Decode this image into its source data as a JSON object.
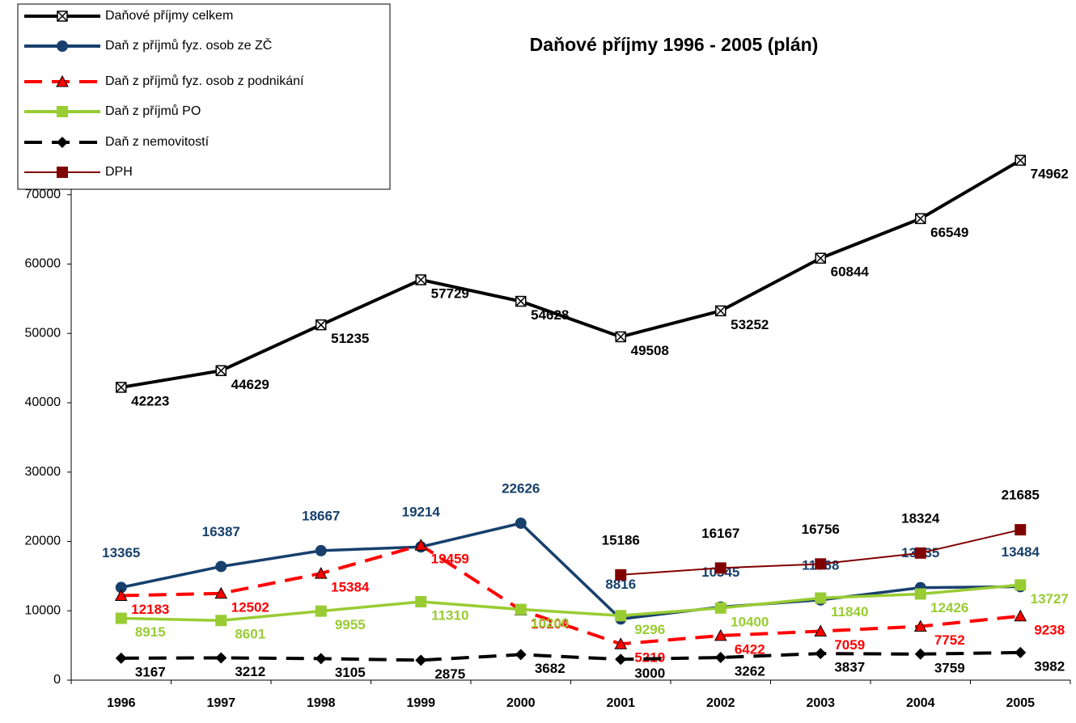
{
  "chart_data": {
    "type": "line",
    "title": "Daňové příjmy 1996 - 2005 (plán)",
    "categories": [
      "1996",
      "1997",
      "1998",
      "1999",
      "2000",
      "2001",
      "2002",
      "2003",
      "2004",
      "2005"
    ],
    "ylim": [
      0,
      80000
    ],
    "yticks": [
      0,
      10000,
      20000,
      30000,
      40000,
      50000,
      60000,
      70000,
      80000
    ],
    "series": [
      {
        "name": "Daňové příjmy celkem",
        "color": "#000000",
        "marker": "xsquare",
        "dashed": false,
        "label_color": "#000000",
        "values": [
          42223,
          44629,
          51235,
          57729,
          54628,
          49508,
          53252,
          60844,
          66549,
          74962
        ]
      },
      {
        "name": "Daň z příjmů fyz. osob ze ZČ",
        "color": "#17406d",
        "marker": "circle",
        "dashed": false,
        "label_color": "#17406d",
        "values": [
          13365,
          16387,
          18667,
          19214,
          22626,
          8816,
          10545,
          11568,
          13335,
          13484
        ]
      },
      {
        "name": "Daň z příjmů fyz. osob z podnikání",
        "color": "#ff0000",
        "marker": "triangle",
        "dashed": true,
        "label_color": "#ff0000",
        "values": [
          12183,
          12502,
          15384,
          19459,
          10104,
          5219,
          6422,
          7059,
          7752,
          9238
        ]
      },
      {
        "name": "Daň z příjmů PO",
        "color": "#99cc33",
        "marker": "square",
        "dashed": false,
        "label_color": "#99cc33",
        "values": [
          8915,
          8601,
          9955,
          11310,
          10200,
          9296,
          10400,
          11840,
          12426,
          13727
        ]
      },
      {
        "name": "Daň z nemovitostí",
        "color": "#000000",
        "marker": "diamond",
        "dashed": true,
        "label_color": "#000000",
        "values": [
          3167,
          3212,
          3105,
          2875,
          3682,
          3000,
          3262,
          3837,
          3759,
          3982
        ]
      },
      {
        "name": "DPH",
        "color": "#800000",
        "marker": "square",
        "dashed": false,
        "label_color": "#000000",
        "values": [
          null,
          null,
          null,
          null,
          null,
          15186,
          16167,
          16756,
          18324,
          21685
        ]
      }
    ]
  }
}
